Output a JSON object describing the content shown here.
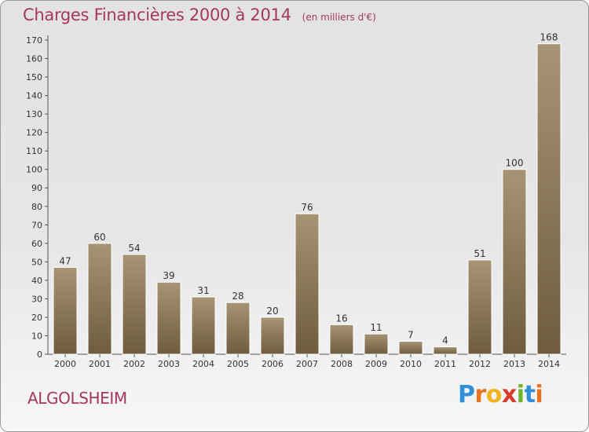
{
  "title": "Charges Financières 2000 à 2014",
  "unit_note": "(en milliers d'€)",
  "commune": "ALGOLSHEIM",
  "logo": {
    "letters": [
      "P",
      "r",
      "o",
      "x",
      "i",
      "t",
      "i"
    ],
    "colors": [
      "#2f8fd8",
      "#e8731c",
      "#f0b51c",
      "#d83a2e",
      "#6fb531",
      "#2f8fd8",
      "#e8731c"
    ]
  },
  "colors": {
    "bar_light": "#a69474",
    "bar_dark": "#6f5c3f",
    "title": "#a6385a",
    "axis": "#555555"
  },
  "chart_data": {
    "type": "bar",
    "categories": [
      "2000",
      "2001",
      "2002",
      "2003",
      "2004",
      "2005",
      "2006",
      "2007",
      "2008",
      "2009",
      "2010",
      "2011",
      "2012",
      "2013",
      "2014"
    ],
    "values": [
      47,
      60,
      54,
      39,
      31,
      28,
      20,
      76,
      16,
      11,
      7,
      4,
      51,
      100,
      168
    ],
    "title": "Charges Financières 2000 à 2014",
    "ylim": [
      0,
      170
    ],
    "yticks": [
      0,
      10,
      20,
      30,
      40,
      50,
      60,
      70,
      80,
      90,
      100,
      110,
      120,
      130,
      140,
      150,
      160,
      170
    ],
    "grid": false,
    "data_labels": true
  }
}
